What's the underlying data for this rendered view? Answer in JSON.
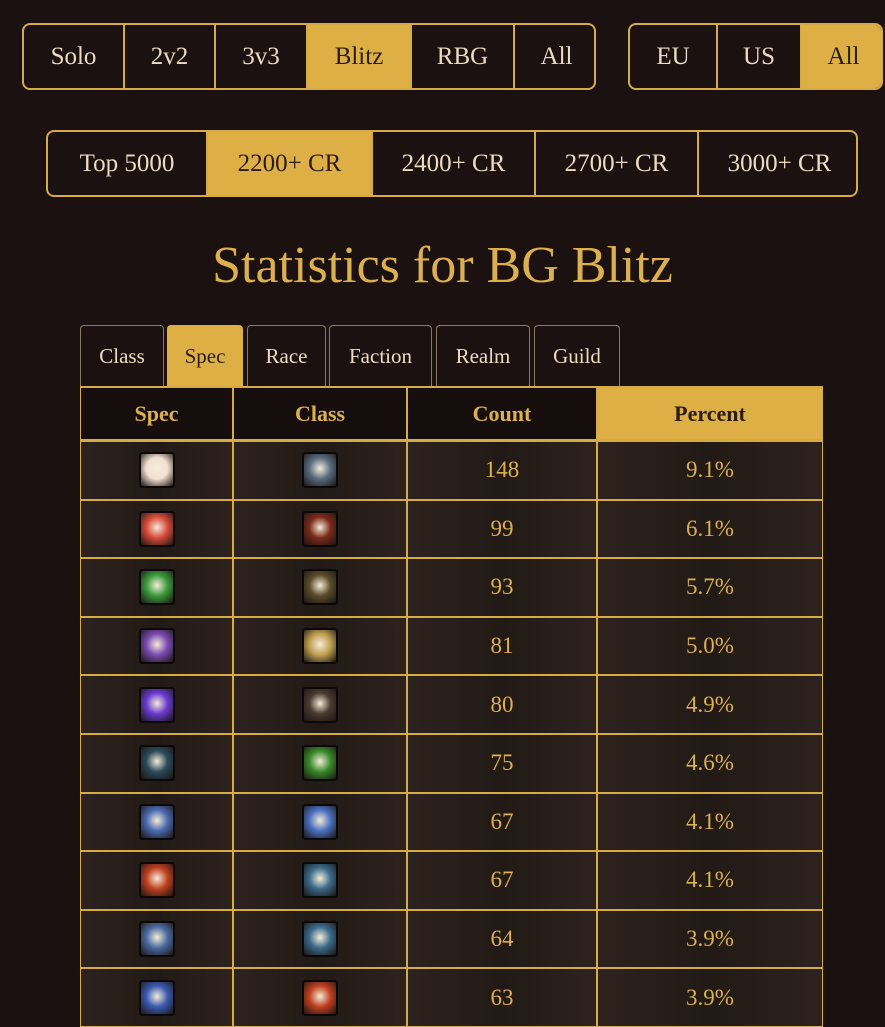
{
  "mode_filters": [
    {
      "label": "Solo"
    },
    {
      "label": "2v2"
    },
    {
      "label": "3v3"
    },
    {
      "label": "Blitz",
      "active": true
    },
    {
      "label": "RBG"
    },
    {
      "label": "All"
    }
  ],
  "region_filters": [
    {
      "label": "EU"
    },
    {
      "label": "US"
    },
    {
      "label": "All",
      "active": true
    }
  ],
  "rating_filters": [
    {
      "label": "Top 5000"
    },
    {
      "label": "2200+ CR",
      "active": true
    },
    {
      "label": "2400+ CR"
    },
    {
      "label": "2700+ CR"
    },
    {
      "label": "3000+ CR"
    }
  ],
  "title": "Statistics for BG Blitz",
  "tabs": [
    {
      "label": "Class"
    },
    {
      "label": "Spec",
      "active": true
    },
    {
      "label": "Race"
    },
    {
      "label": "Faction"
    },
    {
      "label": "Realm"
    },
    {
      "label": "Guild"
    }
  ],
  "table": {
    "columns": [
      {
        "label": "Spec"
      },
      {
        "label": "Class"
      },
      {
        "label": "Count"
      },
      {
        "label": "Percent",
        "active": true
      }
    ],
    "rows": [
      {
        "count": 148,
        "percent": "9.1%"
      },
      {
        "count": 99,
        "percent": "6.1%"
      },
      {
        "count": 93,
        "percent": "5.7%"
      },
      {
        "count": 81,
        "percent": "5.0%"
      },
      {
        "count": 80,
        "percent": "4.9%"
      },
      {
        "count": 75,
        "percent": "4.6%"
      },
      {
        "count": 67,
        "percent": "4.1%"
      },
      {
        "count": 67,
        "percent": "4.1%"
      },
      {
        "count": 64,
        "percent": "3.9%"
      },
      {
        "count": 63,
        "percent": "3.9%"
      }
    ]
  }
}
